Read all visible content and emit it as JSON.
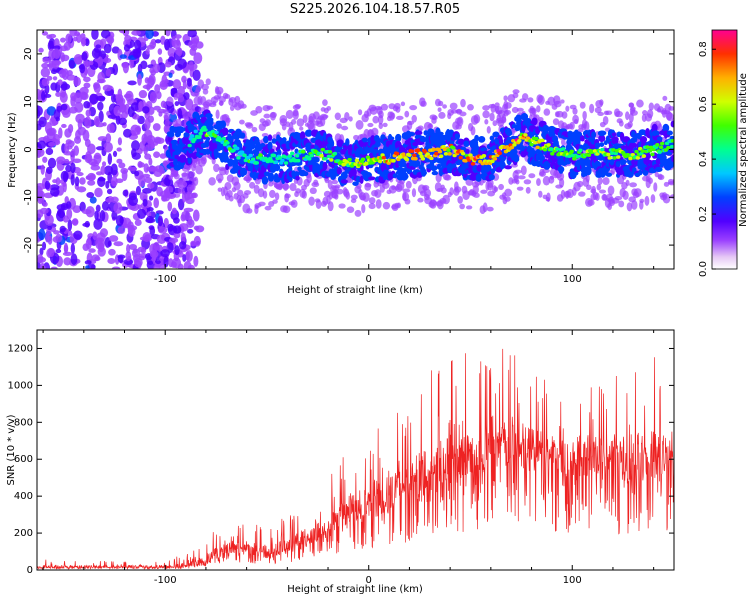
{
  "title": "S225.2026.104.18.57.R05",
  "chart_data": [
    {
      "type": "heatmap",
      "name": "spectrogram",
      "title": "S225.2026.104.18.57.R05",
      "xlabel": "Height of straight line (km)",
      "ylabel": "Frequency (Hz)",
      "xlim": [
        -163,
        150
      ],
      "ylim": [
        -25,
        25
      ],
      "xticks": [
        -100,
        0,
        100
      ],
      "yticks": [
        -20,
        -10,
        0,
        10,
        20
      ],
      "colorbar": {
        "label": "Normalized spectral amplitude",
        "range": [
          0.0,
          0.87
        ],
        "ticks": [
          0.0,
          0.2,
          0.4,
          0.6,
          0.8
        ]
      },
      "ridge": {
        "x": [
          -163,
          -120,
          -100,
          -90,
          -85,
          -80,
          -75,
          -70,
          -60,
          -50,
          -40,
          -30,
          -20,
          -15,
          -10,
          0,
          10,
          20,
          30,
          40,
          50,
          60,
          70,
          75,
          80,
          90,
          100,
          110,
          120,
          130,
          140,
          150
        ],
        "freq": [
          0,
          0,
          0,
          0,
          3,
          4,
          3,
          1,
          -2,
          -2,
          -2,
          -1,
          -1,
          -2,
          -3,
          -2,
          -2,
          -1,
          -1,
          0,
          -2,
          -2,
          1,
          3,
          2,
          0,
          -1,
          -1,
          -1,
          -1,
          0,
          1
        ],
        "amplitude": [
          0.15,
          0.15,
          0.2,
          0.3,
          0.5,
          0.55,
          0.5,
          0.45,
          0.45,
          0.45,
          0.45,
          0.5,
          0.55,
          0.6,
          0.6,
          0.7,
          0.75,
          0.8,
          0.85,
          0.7,
          0.8,
          0.8,
          0.85,
          0.75,
          0.7,
          0.6,
          0.55,
          0.6,
          0.6,
          0.6,
          0.55,
          0.5
        ]
      }
    },
    {
      "type": "line",
      "name": "snr",
      "xlabel": "Height of straight line (km)",
      "ylabel": "SNR (10 * v/v)",
      "xlim": [
        -163,
        150
      ],
      "ylim": [
        0,
        1300
      ],
      "xticks": [
        -100,
        0,
        100
      ],
      "yticks": [
        0,
        200,
        400,
        600,
        800,
        1000,
        1200
      ],
      "color": "#ee2222",
      "envelope": {
        "x": [
          -163,
          -140,
          -120,
          -100,
          -90,
          -80,
          -75,
          -70,
          -60,
          -50,
          -40,
          -30,
          -20,
          -10,
          0,
          10,
          20,
          30,
          40,
          50,
          60,
          70,
          80,
          90,
          100,
          110,
          120,
          130,
          140,
          150
        ],
        "mean": [
          15,
          15,
          15,
          15,
          20,
          35,
          80,
          110,
          110,
          90,
          110,
          160,
          200,
          300,
          330,
          380,
          430,
          500,
          560,
          600,
          620,
          640,
          620,
          600,
          570,
          580,
          560,
          560,
          560,
          590
        ],
        "max": [
          60,
          50,
          50,
          60,
          90,
          150,
          230,
          290,
          270,
          230,
          300,
          400,
          520,
          650,
          750,
          900,
          950,
          1080,
          1180,
          1250,
          1170,
          1270,
          1100,
          1000,
          1050,
          1100,
          1050,
          1180,
          1200,
          1060
        ]
      }
    }
  ]
}
